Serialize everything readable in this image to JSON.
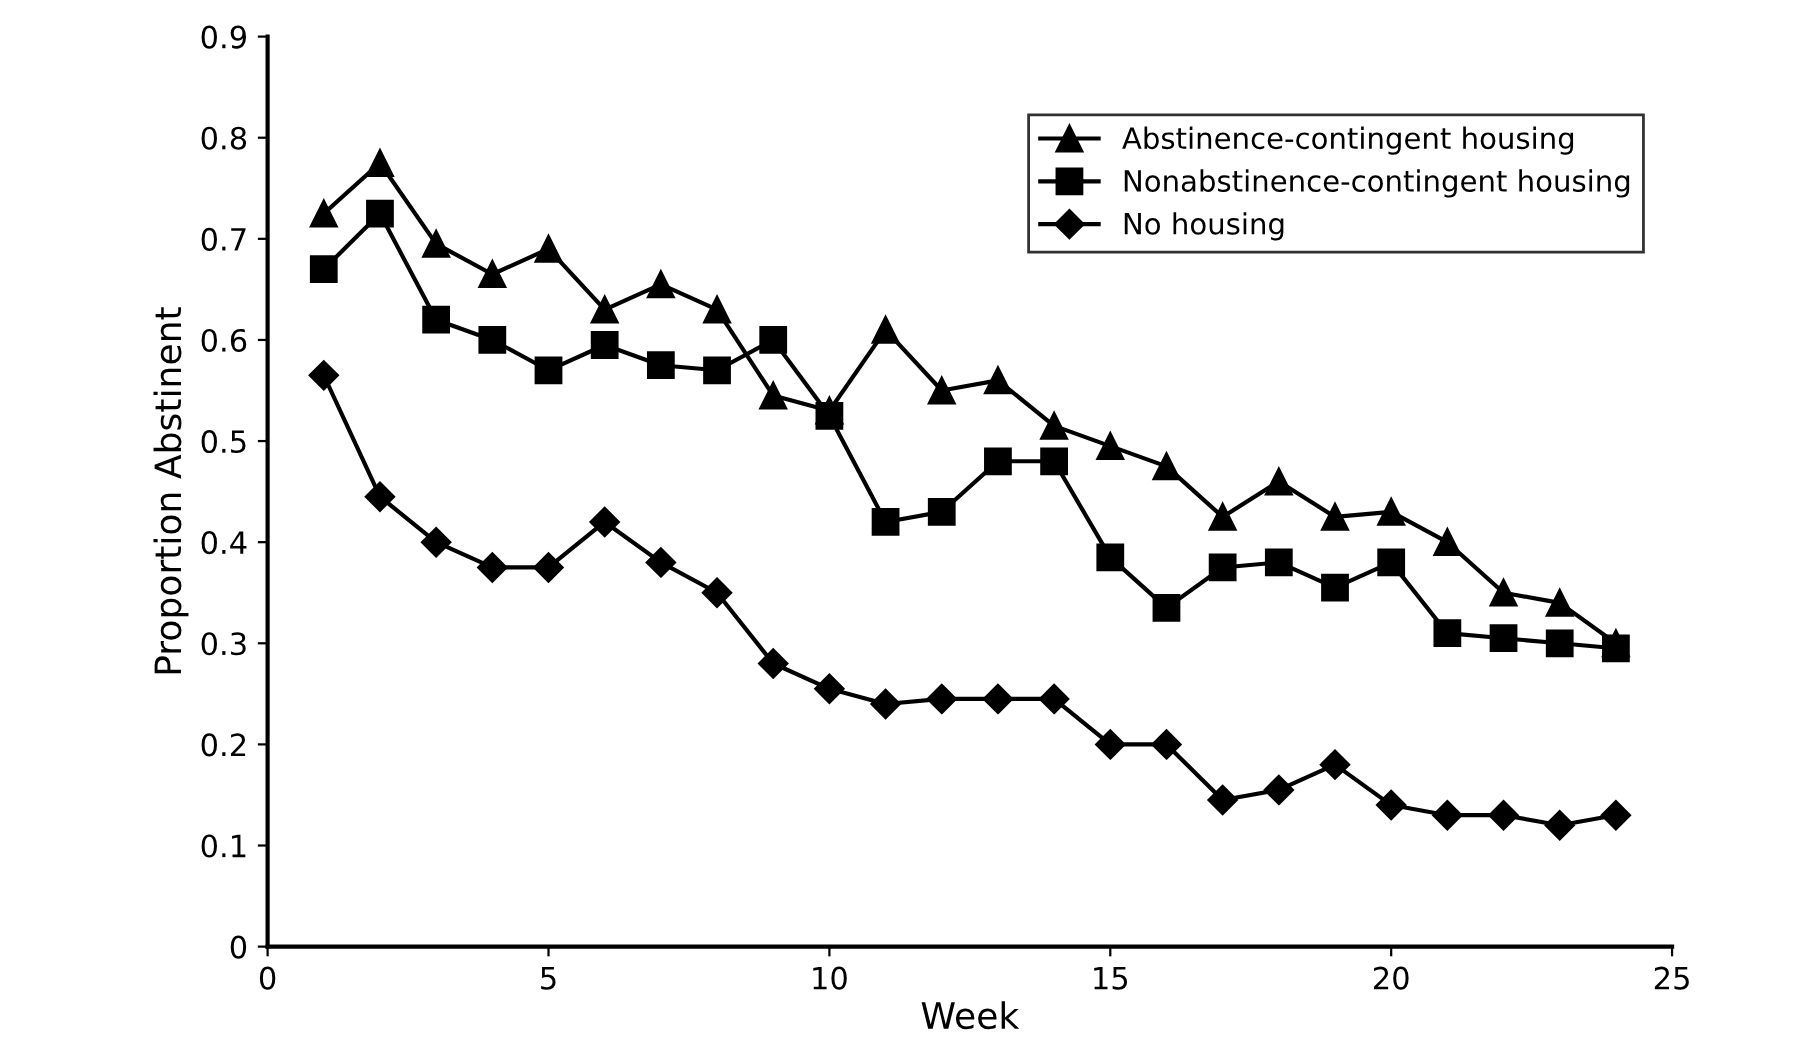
{
  "chart_data": {
    "type": "line",
    "xlabel": "Week",
    "ylabel": "Proportion Abstinent",
    "x": [
      1,
      2,
      3,
      4,
      5,
      6,
      7,
      8,
      9,
      10,
      11,
      12,
      13,
      14,
      15,
      16,
      17,
      18,
      19,
      20,
      21,
      22,
      23,
      24
    ],
    "series": [
      {
        "name": "Abstinence-contingent housing",
        "color": "#000000",
        "marker": "triangle",
        "values": [
          0.725,
          0.775,
          0.695,
          0.665,
          0.69,
          0.63,
          0.655,
          0.63,
          0.545,
          0.53,
          0.61,
          0.55,
          0.56,
          0.515,
          0.495,
          0.475,
          0.425,
          0.46,
          0.425,
          0.43,
          0.4,
          0.35,
          0.34,
          0.3
        ]
      },
      {
        "name": "Nonabstinence-contingent housing",
        "color": "#000000",
        "marker": "square",
        "values": [
          0.67,
          0.725,
          0.62,
          0.6,
          0.57,
          0.595,
          0.575,
          0.57,
          0.6,
          0.525,
          0.42,
          0.43,
          0.48,
          0.48,
          0.385,
          0.335,
          0.375,
          0.38,
          0.355,
          0.38,
          0.31,
          0.305,
          0.3,
          0.295
        ]
      },
      {
        "name": "No housing",
        "color": "#000000",
        "marker": "diamond",
        "values": [
          0.565,
          0.445,
          0.4,
          0.375,
          0.375,
          0.42,
          0.38,
          0.35,
          0.28,
          0.255,
          0.24,
          0.245,
          0.245,
          0.245,
          0.2,
          0.2,
          0.145,
          0.155,
          0.18,
          0.14,
          0.13,
          0.13,
          0.12,
          0.13
        ]
      }
    ],
    "xlim": [
      0,
      25
    ],
    "xticks": [
      0,
      5,
      10,
      15,
      20,
      25
    ],
    "ylim": [
      0,
      0.9
    ],
    "yticks": [
      0,
      0.1,
      0.2,
      0.3,
      0.4,
      0.5,
      0.6,
      0.7,
      0.8,
      0.9
    ],
    "grid": false,
    "legend": "top right",
    "line_style": "solid"
  }
}
